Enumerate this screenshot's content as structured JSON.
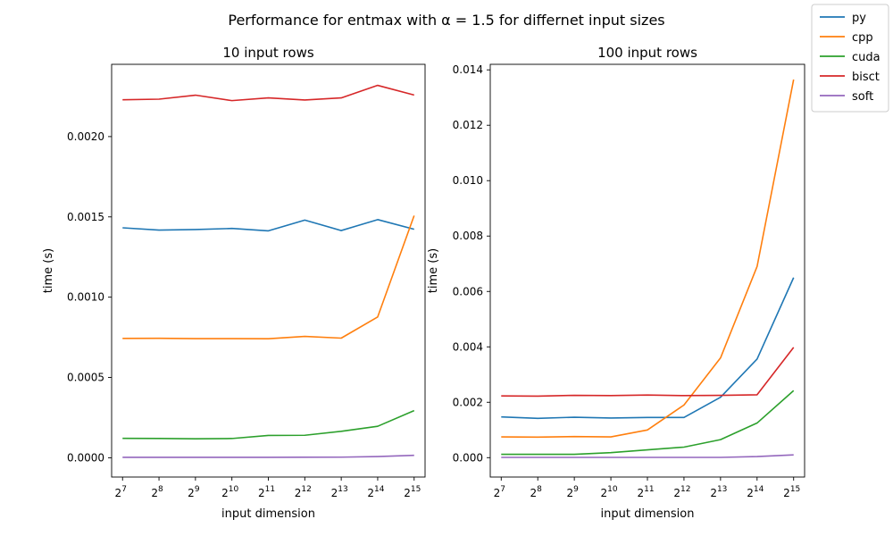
{
  "figure": {
    "title": "Performance for entmax with α = 1.5 for differnet input sizes",
    "legend": {
      "placement": "top-right",
      "entries": [
        {
          "name": "py",
          "color": "#1f77b4"
        },
        {
          "name": "cpp",
          "color": "#ff7f0e"
        },
        {
          "name": "cuda",
          "color": "#2ca02c"
        },
        {
          "name": "bisct",
          "color": "#d62728"
        },
        {
          "name": "soft",
          "color": "#9467bd"
        }
      ]
    }
  },
  "chart_data": [
    {
      "type": "line",
      "title": "10 input rows",
      "xlabel": "input dimension",
      "ylabel": "time (s)",
      "x_exponents": [
        7,
        8,
        9,
        10,
        11,
        12,
        13,
        14,
        15
      ],
      "x_tick_base": "2",
      "xlim": [
        6.7,
        15.3
      ],
      "ylim": [
        -0.00012,
        0.00245
      ],
      "yticks": [
        0.0,
        0.0005,
        0.001,
        0.0015,
        0.002
      ],
      "ytick_labels": [
        "0.0000",
        "0.0005",
        "0.0010",
        "0.0015",
        "0.0020"
      ],
      "grid": false,
      "series": [
        {
          "name": "py",
          "color": "#1f77b4",
          "values": [
            0.001432,
            0.001418,
            0.001421,
            0.001428,
            0.001413,
            0.00148,
            0.001415,
            0.001483,
            0.001423
          ]
        },
        {
          "name": "cpp",
          "color": "#ff7f0e",
          "values": [
            0.000743,
            0.000744,
            0.000742,
            0.000742,
            0.000741,
            0.000756,
            0.000745,
            0.000877,
            0.001508
          ]
        },
        {
          "name": "cuda",
          "color": "#2ca02c",
          "values": [
            0.000121,
            0.00012,
            0.000118,
            0.00012,
            0.000139,
            0.00014,
            0.000165,
            0.000196,
            0.000294
          ]
        },
        {
          "name": "bisct",
          "color": "#d62728",
          "values": [
            0.002229,
            0.002233,
            0.002258,
            0.002224,
            0.002241,
            0.002228,
            0.002241,
            0.002319,
            0.002259
          ]
        },
        {
          "name": "soft",
          "color": "#9467bd",
          "values": [
            2.8e-06,
            2.8e-06,
            2.8e-06,
            2.9e-06,
            2.7e-06,
            3.3e-06,
            3.7e-06,
            7.8e-06,
            1.55e-05
          ]
        }
      ]
    },
    {
      "type": "line",
      "title": "100 input rows",
      "xlabel": "input dimension",
      "ylabel": "time (s)",
      "x_exponents": [
        7,
        8,
        9,
        10,
        11,
        12,
        13,
        14,
        15
      ],
      "x_tick_base": "2",
      "xlim": [
        6.7,
        15.3
      ],
      "ylim": [
        -0.0007,
        0.0142
      ],
      "yticks": [
        0.0,
        0.002,
        0.004,
        0.006,
        0.008,
        0.01,
        0.012,
        0.014
      ],
      "ytick_labels": [
        "0.000",
        "0.002",
        "0.004",
        "0.006",
        "0.008",
        "0.010",
        "0.012",
        "0.014"
      ],
      "grid": false,
      "series": [
        {
          "name": "py",
          "color": "#1f77b4",
          "values": [
            0.00147,
            0.00142,
            0.00146,
            0.00143,
            0.00145,
            0.00145,
            0.00218,
            0.00356,
            0.0065
          ]
        },
        {
          "name": "cpp",
          "color": "#ff7f0e",
          "values": [
            0.00075,
            0.00074,
            0.00076,
            0.00075,
            0.001,
            0.0019,
            0.0036,
            0.0069,
            0.01365
          ]
        },
        {
          "name": "cuda",
          "color": "#2ca02c",
          "values": [
            0.00012,
            0.00012,
            0.00012,
            0.00018,
            0.00028,
            0.00038,
            0.00065,
            0.00125,
            0.00242
          ]
        },
        {
          "name": "bisct",
          "color": "#d62728",
          "values": [
            0.00223,
            0.00222,
            0.00225,
            0.00224,
            0.00226,
            0.00224,
            0.00225,
            0.00227,
            0.00398
          ]
        },
        {
          "name": "soft",
          "color": "#9467bd",
          "values": [
            1e-05,
            1e-05,
            1e-05,
            1e-05,
            1e-05,
            1e-05,
            1e-05,
            4e-05,
            0.0001
          ]
        }
      ]
    }
  ]
}
